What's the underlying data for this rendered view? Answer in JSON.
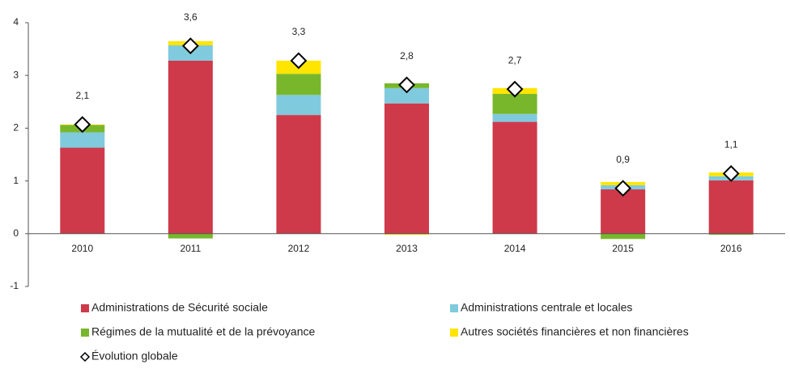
{
  "chart_data": {
    "type": "bar",
    "stacked": true,
    "categories": [
      "2010",
      "2011",
      "2012",
      "2013",
      "2014",
      "2015",
      "2016"
    ],
    "series": [
      {
        "name": "Administrations de Sécurité sociale",
        "color": "#cf3a4b",
        "values": [
          1.63,
          3.28,
          2.25,
          2.47,
          2.12,
          0.84,
          1.01
        ]
      },
      {
        "name": "Administrations centrale et locales",
        "color": "#80cadd",
        "values": [
          0.29,
          0.29,
          0.38,
          0.29,
          0.15,
          0.08,
          0.08
        ]
      },
      {
        "name": "Régimes de la mutualité et de la prévoyance",
        "color": "#78b72c",
        "values": [
          0.14,
          -0.09,
          0.4,
          0.09,
          0.38,
          -0.1,
          -0.02
        ]
      },
      {
        "name": "Autres sociétés financières et non financières",
        "color": "#ffe500",
        "values": [
          0.01,
          0.08,
          0.25,
          -0.02,
          0.11,
          0.06,
          0.07
        ]
      }
    ],
    "overall": {
      "name": "Évolution globale",
      "values": [
        2.07,
        3.56,
        3.28,
        2.82,
        2.74,
        0.86,
        1.14
      ],
      "value_labels": [
        "2,1",
        "3,6",
        "3,3",
        "2,8",
        "2,7",
        "0,9",
        "1,1"
      ]
    },
    "ylim": [
      -1,
      4
    ],
    "yticks": [
      -1,
      0,
      1,
      2,
      3,
      4
    ]
  }
}
